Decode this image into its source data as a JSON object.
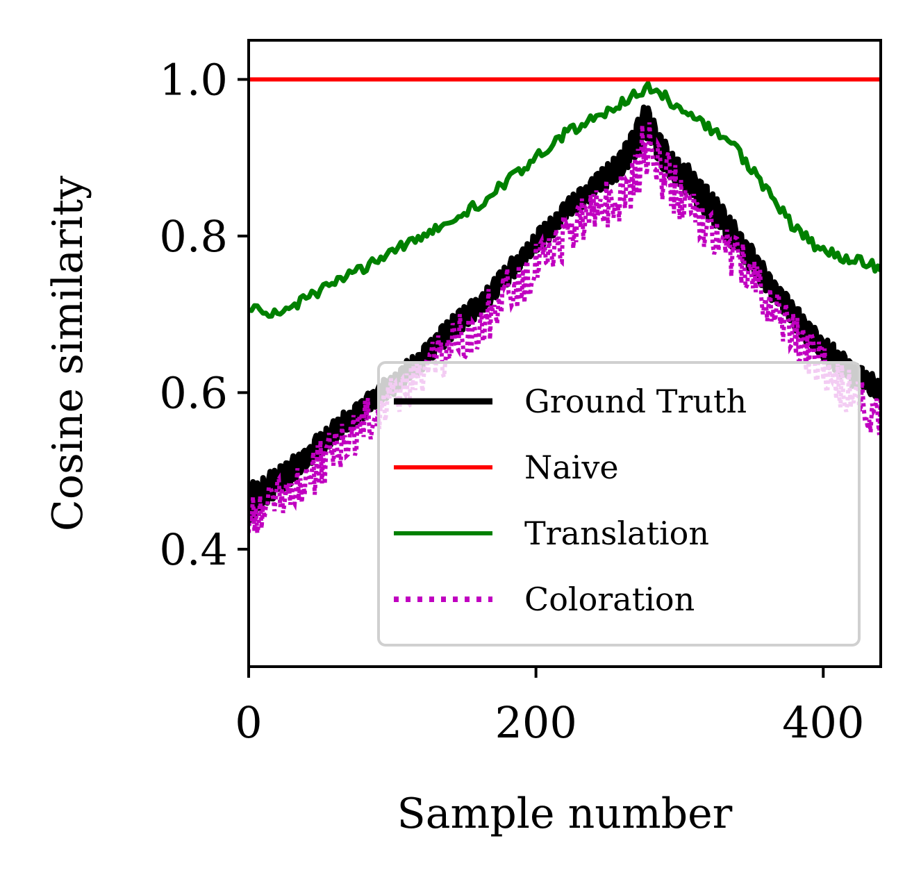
{
  "chart_data": {
    "type": "line",
    "xlabel": "Sample number",
    "ylabel": "Cosine similarity",
    "xlim": [
      0,
      440
    ],
    "ylim": [
      0.25,
      1.05
    ],
    "xticks": [
      0,
      200,
      400
    ],
    "xtick_labels": [
      "0",
      "200",
      "400"
    ],
    "yticks": [
      0.4,
      0.6,
      0.8,
      1.0
    ],
    "ytick_labels": [
      "0.4",
      "0.6",
      "0.8",
      "1.0"
    ],
    "grid": false,
    "legend_position": "lower-right",
    "peak_x": 277,
    "series": [
      {
        "name": "Ground Truth",
        "color": "#000000",
        "style": "solid",
        "x": [
          0,
          20,
          40,
          60,
          80,
          100,
          120,
          140,
          160,
          180,
          200,
          220,
          240,
          260,
          270,
          277,
          285,
          300,
          320,
          340,
          360,
          380,
          400,
          420,
          440
        ],
        "y_low": [
          0.42,
          0.46,
          0.49,
          0.53,
          0.56,
          0.59,
          0.62,
          0.66,
          0.69,
          0.73,
          0.77,
          0.81,
          0.84,
          0.87,
          0.89,
          0.91,
          0.88,
          0.85,
          0.81,
          0.77,
          0.72,
          0.67,
          0.63,
          0.6,
          0.58
        ],
        "y_high": [
          0.49,
          0.51,
          0.54,
          0.57,
          0.6,
          0.63,
          0.66,
          0.7,
          0.73,
          0.77,
          0.81,
          0.85,
          0.88,
          0.92,
          0.95,
          0.99,
          0.94,
          0.91,
          0.87,
          0.82,
          0.77,
          0.72,
          0.68,
          0.65,
          0.62
        ]
      },
      {
        "name": "Naive",
        "color": "#ff0000",
        "style": "solid",
        "x": [
          0,
          440
        ],
        "y": [
          1.0,
          1.0
        ]
      },
      {
        "name": "Translation",
        "color": "#008000",
        "style": "solid",
        "x": [
          0,
          20,
          40,
          60,
          80,
          100,
          120,
          140,
          160,
          180,
          200,
          220,
          240,
          260,
          277,
          290,
          300,
          320,
          340,
          360,
          380,
          400,
          420,
          440
        ],
        "y": [
          0.71,
          0.7,
          0.72,
          0.74,
          0.76,
          0.78,
          0.8,
          0.82,
          0.84,
          0.87,
          0.9,
          0.93,
          0.95,
          0.97,
          0.99,
          0.98,
          0.96,
          0.94,
          0.91,
          0.86,
          0.81,
          0.78,
          0.77,
          0.76
        ]
      },
      {
        "name": "Coloration",
        "color": "#c000c0",
        "style": "dotted",
        "x": [
          0,
          20,
          40,
          60,
          80,
          100,
          120,
          140,
          160,
          180,
          200,
          220,
          240,
          260,
          270,
          277,
          285,
          300,
          320,
          340,
          360,
          380,
          400,
          420,
          440
        ],
        "y_low": [
          0.41,
          0.44,
          0.46,
          0.49,
          0.53,
          0.56,
          0.59,
          0.62,
          0.65,
          0.69,
          0.73,
          0.77,
          0.8,
          0.82,
          0.84,
          0.86,
          0.85,
          0.82,
          0.78,
          0.74,
          0.69,
          0.64,
          0.6,
          0.56,
          0.54
        ],
        "y_high": [
          0.47,
          0.49,
          0.52,
          0.56,
          0.59,
          0.62,
          0.65,
          0.69,
          0.72,
          0.76,
          0.79,
          0.83,
          0.86,
          0.89,
          0.93,
          0.96,
          0.93,
          0.89,
          0.85,
          0.8,
          0.75,
          0.7,
          0.66,
          0.63,
          0.6
        ]
      }
    ]
  }
}
